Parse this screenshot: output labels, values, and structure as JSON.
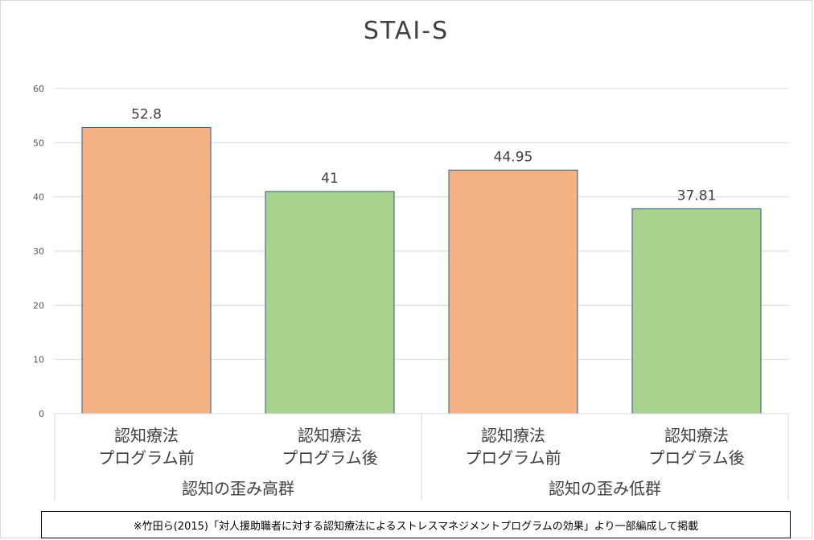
{
  "chart_data": {
    "type": "bar",
    "title": "STAI-S",
    "ylim": [
      0,
      60
    ],
    "yticks": [
      0,
      10,
      20,
      30,
      40,
      50,
      60
    ],
    "grid": true,
    "bars": [
      {
        "label_line1": "認知療法",
        "label_line2": "プログラム前",
        "value": 52.8,
        "value_label": "52.8",
        "color": "#f4b183"
      },
      {
        "label_line1": "認知療法",
        "label_line2": "プログラム後",
        "value": 41,
        "value_label": "41",
        "color": "#a9d18e"
      },
      {
        "label_line1": "認知療法",
        "label_line2": "プログラム前",
        "value": 44.95,
        "value_label": "44.95",
        "color": "#f4b183"
      },
      {
        "label_line1": "認知療法",
        "label_line2": "プログラム後",
        "value": 37.81,
        "value_label": "37.81",
        "color": "#a9d18e"
      }
    ],
    "groups": [
      {
        "label": "認知の歪み高群"
      },
      {
        "label": "認知の歪み低群"
      }
    ],
    "bar_border_color": "#2e5c8a"
  },
  "source_note": "※竹田ら(2015)「対人援助職者に対する認知療法によるストレスマネジメントプログラムの効果」より一部編成して掲載"
}
